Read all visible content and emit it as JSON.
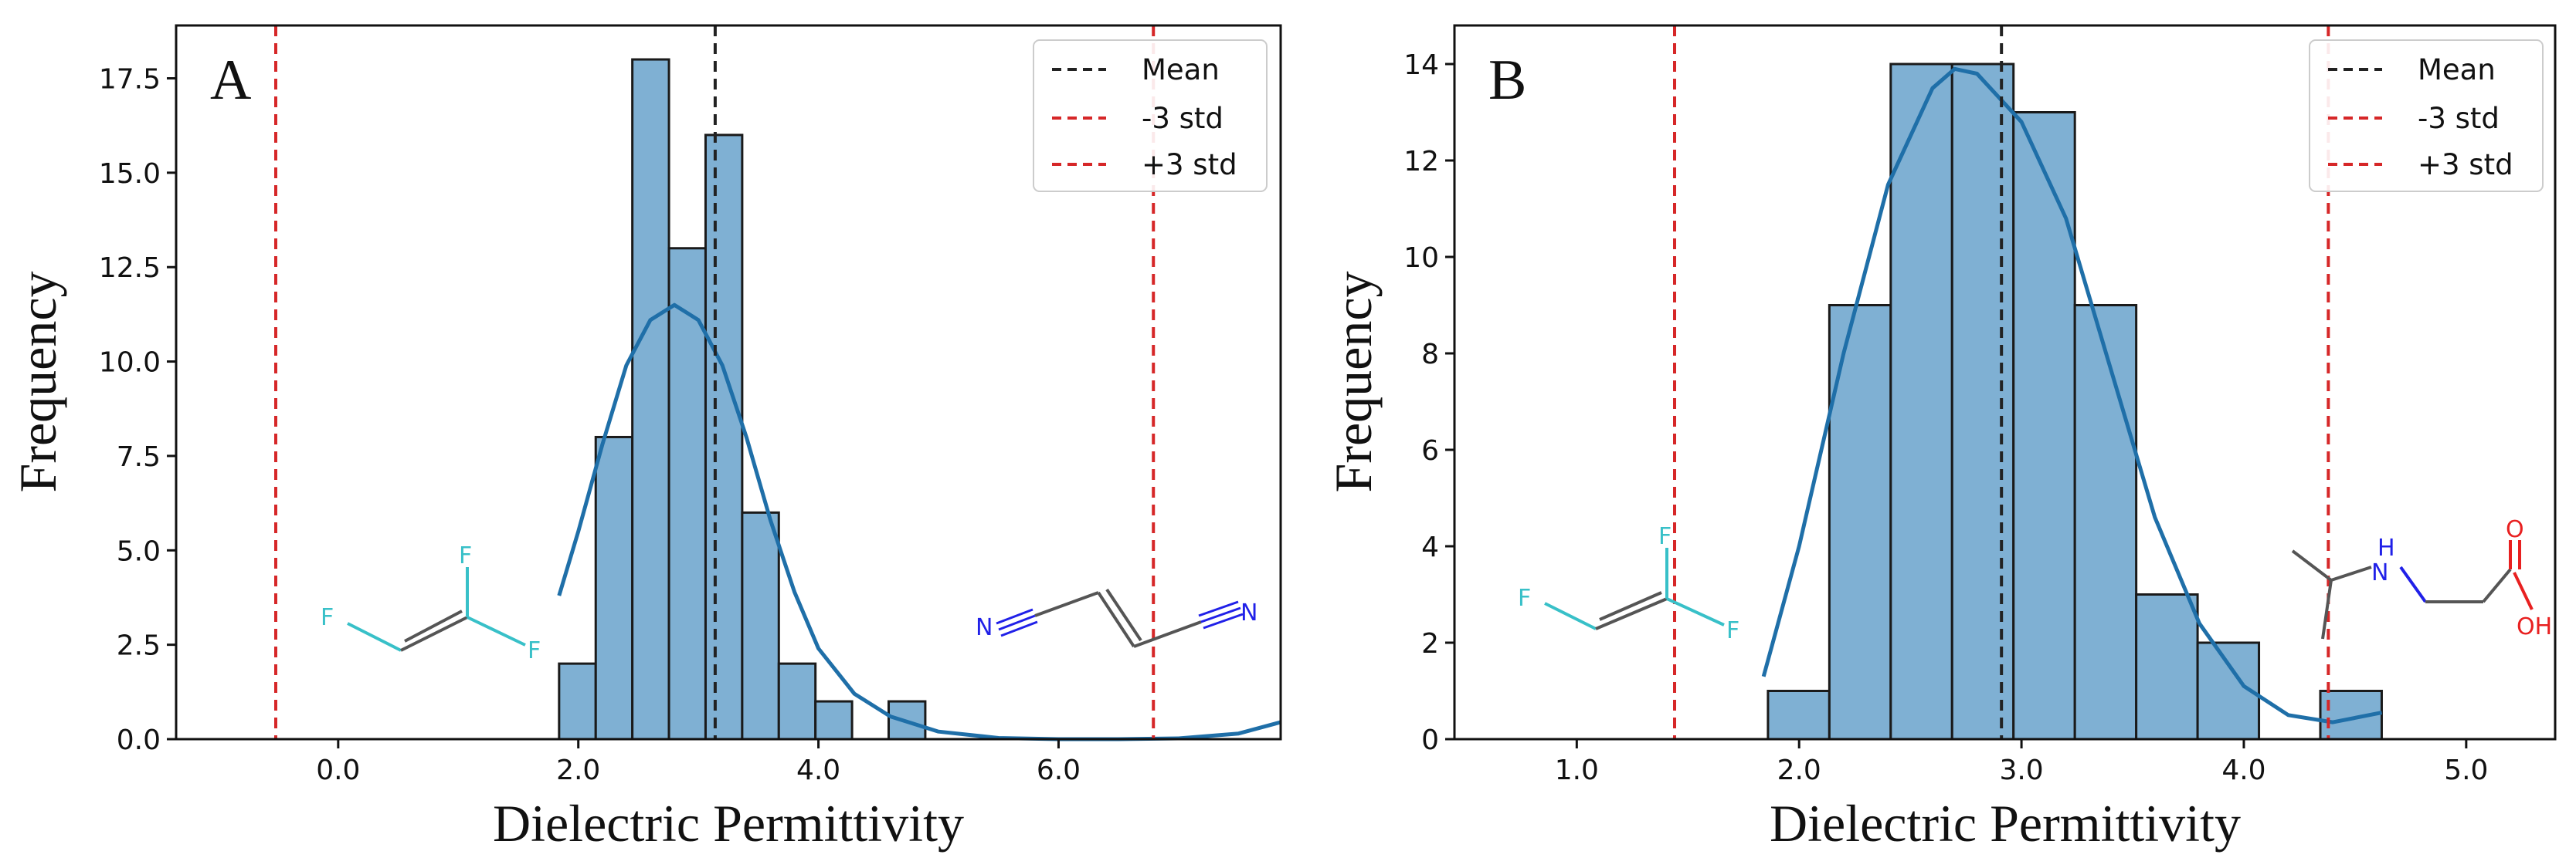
{
  "chart_data": [
    {
      "type": "bar",
      "panel_label": "A",
      "xlabel": "Dielectric Permittivity",
      "ylabel": "Frequency",
      "xlim": [
        -1.35,
        7.85
      ],
      "ylim": [
        0,
        18.9
      ],
      "x_ticks": [
        0,
        2,
        4,
        6
      ],
      "x_tick_labels": [
        "0.0",
        "2.0",
        "4.0",
        "6.0"
      ],
      "y_ticks": [
        0,
        2.5,
        5,
        7.5,
        10,
        12.5,
        15,
        17.5
      ],
      "y_tick_labels": [
        "0.0",
        "2.5",
        "5.0",
        "7.5",
        "10.0",
        "12.5",
        "15.0",
        "17.5"
      ],
      "bin_edges": [
        1.84,
        2.145,
        2.45,
        2.755,
        3.06,
        3.365,
        3.67,
        3.975,
        4.28,
        4.585,
        4.89
      ],
      "counts": [
        2,
        8,
        18,
        13,
        16,
        6,
        2,
        1,
        0,
        1
      ],
      "kde": {
        "x": [
          1.84,
          2.0,
          2.2,
          2.4,
          2.6,
          2.8,
          3.0,
          3.2,
          3.4,
          3.6,
          3.8,
          4.0,
          4.3,
          4.6,
          5.0,
          5.5,
          6.0,
          6.5,
          7.0,
          7.5,
          7.85
        ],
        "y": [
          3.8,
          5.5,
          7.8,
          9.9,
          11.1,
          11.5,
          11.1,
          9.9,
          8.0,
          5.8,
          3.9,
          2.4,
          1.2,
          0.6,
          0.2,
          0.03,
          0.0,
          0.0,
          0.02,
          0.15,
          0.45
        ]
      },
      "mean": 3.14,
      "minus_3std": -0.52,
      "plus_3std": 6.79,
      "legend": [
        "Mean",
        "-3 std",
        "+3 std"
      ],
      "legend_position": "top-right",
      "colors": {
        "bar": "#7fb0d3",
        "edge": "#1a1a1a",
        "kde": "#1f6fa8",
        "mean": "#222222",
        "std": "#d62728"
      },
      "molecules": [
        {
          "name": "1,1-difluoroethylene",
          "atoms": [
            "F",
            "F",
            "F"
          ],
          "color": "#38c0c8"
        },
        {
          "name": "fumaronitrile",
          "atoms": [
            "N",
            "N"
          ],
          "color": "#2020e8"
        }
      ]
    },
    {
      "type": "bar",
      "panel_label": "B",
      "xlabel": "Dielectric Permittivity",
      "ylabel": "Frequency",
      "xlim": [
        0.45,
        5.4
      ],
      "ylim": [
        0,
        14.8
      ],
      "x_ticks": [
        1,
        2,
        3,
        4,
        5
      ],
      "x_tick_labels": [
        "1.0",
        "2.0",
        "3.0",
        "4.0",
        "5.0"
      ],
      "y_ticks": [
        0,
        2,
        4,
        6,
        8,
        10,
        12,
        14
      ],
      "y_tick_labels": [
        "0",
        "2",
        "4",
        "6",
        "8",
        "10",
        "12",
        "14"
      ],
      "bin_edges": [
        1.86,
        2.136,
        2.412,
        2.688,
        2.964,
        3.24,
        3.516,
        3.792,
        4.068,
        4.344,
        4.62
      ],
      "counts": [
        1,
        9,
        14,
        14,
        13,
        9,
        3,
        2,
        0,
        1
      ],
      "kde": {
        "x": [
          1.84,
          2.0,
          2.2,
          2.4,
          2.6,
          2.7,
          2.8,
          3.0,
          3.2,
          3.4,
          3.6,
          3.8,
          4.0,
          4.2,
          4.4,
          4.62
        ],
        "y": [
          1.3,
          4.0,
          8.0,
          11.5,
          13.5,
          13.9,
          13.8,
          12.8,
          10.8,
          7.7,
          4.6,
          2.4,
          1.1,
          0.5,
          0.35,
          0.55
        ]
      },
      "mean": 2.91,
      "minus_3std": 1.44,
      "plus_3std": 4.38,
      "legend": [
        "Mean",
        "-3 std",
        "+3 std"
      ],
      "legend_position": "top-right",
      "colors": {
        "bar": "#7fb0d3",
        "edge": "#1a1a1a",
        "kde": "#1f6fa8",
        "mean": "#222222",
        "std": "#d62728"
      },
      "molecules": [
        {
          "name": "1,1-difluoroethylene",
          "atoms": [
            "F",
            "F",
            "F"
          ],
          "color": "#38c0c8"
        },
        {
          "name": "N-isopropylglycine",
          "atoms": [
            "H",
            "N",
            "O",
            "OH"
          ],
          "colors": [
            "#2020e8",
            "#2020e8",
            "#e82020",
            "#e82020"
          ]
        }
      ]
    }
  ]
}
